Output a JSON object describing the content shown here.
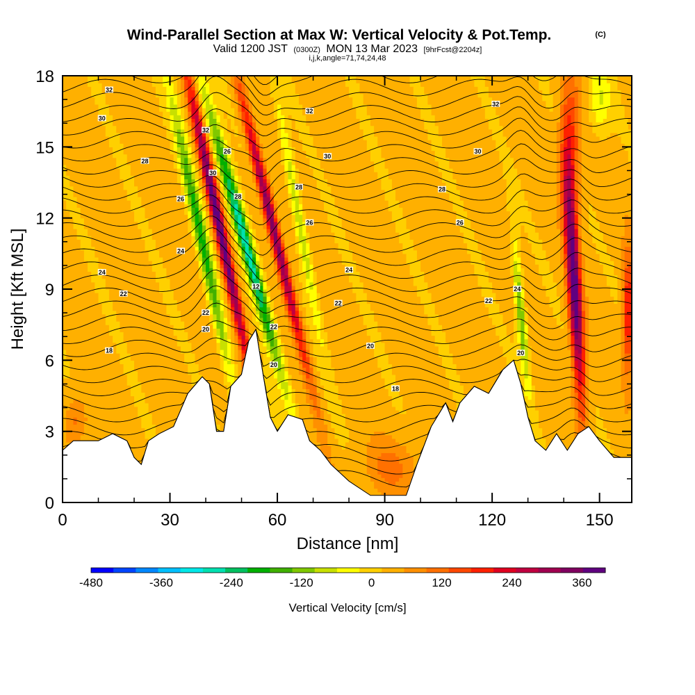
{
  "header": {
    "title": "Wind-Parallel Section at Max W: Vertical Velocity & Pot.Temp.",
    "copyright": "(C)",
    "valid_prefix": "Valid 1200 JST",
    "valid_utc": "(0300Z)",
    "valid_date": "MON 13 Mar 2023",
    "forecast": "[9hrFcst@2204z]",
    "indices": "i,j,k,angle=71,74,24,48"
  },
  "chart_data": {
    "type": "heatmap",
    "xlabel": "Distance [nm]",
    "ylabel": "Height [Kft MSL]",
    "xlim": [
      0,
      159
    ],
    "ylim": [
      0,
      18
    ],
    "xticks": [
      "0",
      "30",
      "60",
      "90",
      "120",
      "150"
    ],
    "xtick_values": [
      0,
      30,
      60,
      90,
      120,
      150
    ],
    "yticks": [
      "0",
      "3",
      "6",
      "9",
      "12",
      "15",
      "18"
    ],
    "ytick_values": [
      0,
      3,
      6,
      9,
      12,
      15,
      18
    ],
    "grid": false,
    "terrain_kft": [
      {
        "x": 0,
        "y": 2.2
      },
      {
        "x": 3,
        "y": 2.6
      },
      {
        "x": 10,
        "y": 2.6
      },
      {
        "x": 14,
        "y": 2.9
      },
      {
        "x": 18,
        "y": 2.6
      },
      {
        "x": 20,
        "y": 1.9
      },
      {
        "x": 22,
        "y": 1.6
      },
      {
        "x": 24,
        "y": 2.6
      },
      {
        "x": 27,
        "y": 2.9
      },
      {
        "x": 31,
        "y": 3.2
      },
      {
        "x": 35,
        "y": 4.6
      },
      {
        "x": 39,
        "y": 5.3
      },
      {
        "x": 41,
        "y": 5.0
      },
      {
        "x": 43,
        "y": 3.0
      },
      {
        "x": 45,
        "y": 3.0
      },
      {
        "x": 47,
        "y": 4.9
      },
      {
        "x": 50,
        "y": 5.4
      },
      {
        "x": 52,
        "y": 6.8
      },
      {
        "x": 54,
        "y": 7.3
      },
      {
        "x": 56,
        "y": 5.4
      },
      {
        "x": 58,
        "y": 3.6
      },
      {
        "x": 60,
        "y": 3.0
      },
      {
        "x": 63,
        "y": 3.7
      },
      {
        "x": 67,
        "y": 3.5
      },
      {
        "x": 69,
        "y": 2.6
      },
      {
        "x": 72,
        "y": 2.2
      },
      {
        "x": 75,
        "y": 1.6
      },
      {
        "x": 80,
        "y": 0.9
      },
      {
        "x": 86,
        "y": 0.3
      },
      {
        "x": 96,
        "y": 0.3
      },
      {
        "x": 99,
        "y": 1.6
      },
      {
        "x": 103,
        "y": 3.2
      },
      {
        "x": 107,
        "y": 4.2
      },
      {
        "x": 109,
        "y": 3.4
      },
      {
        "x": 111,
        "y": 4.2
      },
      {
        "x": 115,
        "y": 4.9
      },
      {
        "x": 119,
        "y": 4.6
      },
      {
        "x": 123,
        "y": 5.6
      },
      {
        "x": 126,
        "y": 6.0
      },
      {
        "x": 128,
        "y": 5.0
      },
      {
        "x": 130,
        "y": 3.6
      },
      {
        "x": 132,
        "y": 2.6
      },
      {
        "x": 135,
        "y": 2.2
      },
      {
        "x": 138,
        "y": 2.9
      },
      {
        "x": 141,
        "y": 2.2
      },
      {
        "x": 144,
        "y": 2.9
      },
      {
        "x": 147,
        "y": 3.2
      },
      {
        "x": 150,
        "y": 2.6
      },
      {
        "x": 154,
        "y": 1.9
      },
      {
        "x": 159,
        "y": 1.9
      }
    ],
    "vertical_velocity_features_cms": [
      {
        "x": 39,
        "y": 11.0,
        "value": -220,
        "sx": 1.8,
        "sy": 6.0,
        "tilt": -1.4
      },
      {
        "x": 44,
        "y": 11.5,
        "value": 380,
        "sx": 1.6,
        "sy": 6.5,
        "tilt": -1.4
      },
      {
        "x": 51,
        "y": 11.0,
        "value": -320,
        "sx": 2.0,
        "sy": 6.0,
        "tilt": -1.8
      },
      {
        "x": 59,
        "y": 11.5,
        "value": 330,
        "sx": 1.6,
        "sy": 6.0,
        "tilt": -1.6
      },
      {
        "x": 66,
        "y": 12.0,
        "value": -130,
        "sx": 1.5,
        "sy": 5.0,
        "tilt": -1.2
      },
      {
        "x": 128,
        "y": 8.0,
        "value": -180,
        "sx": 1.2,
        "sy": 3.0,
        "tilt": -0.6
      },
      {
        "x": 143,
        "y": 9.0,
        "value": 380,
        "sx": 1.8,
        "sy": 5.0,
        "tilt": -0.4
      },
      {
        "x": 142,
        "y": 15.0,
        "value": 150,
        "sx": 2.5,
        "sy": 3.0,
        "tilt": 0
      },
      {
        "x": 158,
        "y": 8.0,
        "value": 200,
        "sx": 1.5,
        "sy": 2.5,
        "tilt": 0
      },
      {
        "x": 92,
        "y": 1.5,
        "value": 70,
        "sx": 8.0,
        "sy": 1.2,
        "tilt": 0
      },
      {
        "x": 4,
        "y": 3.5,
        "value": 80,
        "sx": 3.0,
        "sy": 1.0,
        "tilt": 0
      },
      {
        "x": 150,
        "y": 17.0,
        "value": -90,
        "sx": 3.0,
        "sy": 1.5,
        "tilt": 0
      }
    ],
    "potential_temperature_labels": [
      {
        "x": 13,
        "y": 17.4,
        "text": "32"
      },
      {
        "x": 11,
        "y": 16.2,
        "text": "30"
      },
      {
        "x": 23,
        "y": 14.4,
        "text": "28"
      },
      {
        "x": 33,
        "y": 12.8,
        "text": "26"
      },
      {
        "x": 33,
        "y": 10.6,
        "text": "24"
      },
      {
        "x": 11,
        "y": 9.7,
        "text": "24"
      },
      {
        "x": 17,
        "y": 8.8,
        "text": "22"
      },
      {
        "x": 13,
        "y": 6.4,
        "text": "18"
      },
      {
        "x": 40,
        "y": 15.7,
        "text": "32"
      },
      {
        "x": 46,
        "y": 14.8,
        "text": "26"
      },
      {
        "x": 42,
        "y": 13.9,
        "text": "30"
      },
      {
        "x": 49,
        "y": 12.9,
        "text": "28"
      },
      {
        "x": 40,
        "y": 8.0,
        "text": "22"
      },
      {
        "x": 40,
        "y": 7.3,
        "text": "20"
      },
      {
        "x": 54,
        "y": 9.1,
        "text": "12"
      },
      {
        "x": 59,
        "y": 7.4,
        "text": "22"
      },
      {
        "x": 59,
        "y": 5.8,
        "text": "20"
      },
      {
        "x": 69,
        "y": 16.5,
        "text": "32"
      },
      {
        "x": 74,
        "y": 14.6,
        "text": "30"
      },
      {
        "x": 66,
        "y": 13.3,
        "text": "28"
      },
      {
        "x": 69,
        "y": 11.8,
        "text": "26"
      },
      {
        "x": 80,
        "y": 9.8,
        "text": "24"
      },
      {
        "x": 77,
        "y": 8.4,
        "text": "22"
      },
      {
        "x": 86,
        "y": 6.6,
        "text": "20"
      },
      {
        "x": 93,
        "y": 4.8,
        "text": "18"
      },
      {
        "x": 121,
        "y": 16.8,
        "text": "32"
      },
      {
        "x": 116,
        "y": 14.8,
        "text": "30"
      },
      {
        "x": 106,
        "y": 13.2,
        "text": "28"
      },
      {
        "x": 111,
        "y": 11.8,
        "text": "26"
      },
      {
        "x": 119,
        "y": 8.5,
        "text": "22"
      },
      {
        "x": 127,
        "y": 9.0,
        "text": "24"
      },
      {
        "x": 128,
        "y": 6.3,
        "text": "20"
      }
    ],
    "colorbar": {
      "title": "Vertical Velocity [cm/s]",
      "range": [
        -480,
        400
      ],
      "ticks": [
        "-480",
        "-360",
        "-240",
        "-120",
        "0",
        "120",
        "240",
        "360"
      ],
      "tick_values": [
        -480,
        -360,
        -240,
        -120,
        0,
        120,
        240,
        360
      ],
      "colors": [
        "#0000ff",
        "#0045ff",
        "#0088ff",
        "#00c0ff",
        "#00e8e8",
        "#00e0b0",
        "#00c060",
        "#00b000",
        "#40b000",
        "#80c800",
        "#c8e000",
        "#ffff00",
        "#ffd000",
        "#ffb000",
        "#ff9000",
        "#ff7000",
        "#ff4800",
        "#ff2000",
        "#e00020",
        "#c00040",
        "#a00050",
        "#800060",
        "#600080"
      ]
    }
  }
}
